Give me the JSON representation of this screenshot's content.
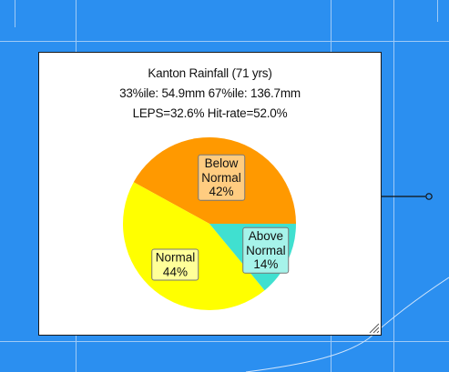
{
  "map": {
    "background": "#2b8ff0",
    "gridline_color": "#9fcaf6"
  },
  "popup": {
    "title_lines": [
      "Kanton Rainfall (71 yrs)",
      "33%ile: 54.9mm 67%ile: 136.7mm",
      "LEPS=32.6% Hit-rate=52.0%"
    ]
  },
  "chart_data": {
    "type": "pie",
    "title": "Kanton Rainfall (71 yrs)",
    "subtitle": "33%ile: 54.9mm 67%ile: 136.7mm",
    "annotation": "LEPS=32.6% Hit-rate=52.0%",
    "start_angle_deg": 0,
    "direction": "counterclockwise",
    "slices": [
      {
        "label_lines": [
          "Below",
          "Normal",
          "42%"
        ],
        "value": 42,
        "color": "#ff9900",
        "label_bg": "#ffcc80"
      },
      {
        "label_lines": [
          "Normal",
          "44%"
        ],
        "value": 44,
        "color": "#ffff00",
        "label_bg": "#ffff99"
      },
      {
        "label_lines": [
          "Above",
          "Normal",
          "14%"
        ],
        "value": 14,
        "color": "#40e0d0",
        "label_bg": "#a6f3ea"
      }
    ]
  }
}
